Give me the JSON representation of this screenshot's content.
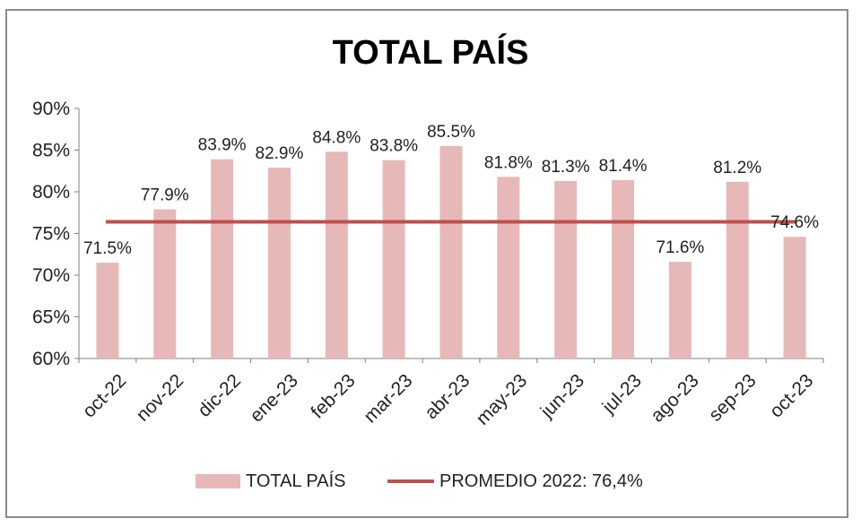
{
  "chart_data": {
    "type": "bar",
    "title": "TOTAL PAÍS",
    "categories": [
      "oct-22",
      "nov-22",
      "dic-22",
      "ene-23",
      "feb-23",
      "mar-23",
      "abr-23",
      "may-23",
      "jun-23",
      "jul-23",
      "ago-23",
      "sep-23",
      "oct-23"
    ],
    "series": [
      {
        "name": "TOTAL PAÍS",
        "values": [
          71.5,
          77.9,
          83.9,
          82.9,
          84.8,
          83.8,
          85.5,
          81.8,
          81.3,
          81.4,
          71.6,
          81.2,
          74.6
        ],
        "color": "#e6b9b8"
      }
    ],
    "value_labels": [
      "71.5%",
      "77.9%",
      "83.9%",
      "82.9%",
      "84.8%",
      "83.8%",
      "85.5%",
      "81.8%",
      "81.3%",
      "81.4%",
      "71.6%",
      "81.2%",
      "74.6%"
    ],
    "reference_line": {
      "name": "PROMEDIO 2022: 76,4%",
      "value": 76.4,
      "color": "#c0504d"
    },
    "ylim": [
      60,
      90
    ],
    "yticks": [
      60,
      65,
      70,
      75,
      80,
      85,
      90
    ],
    "ytick_labels": [
      "60%",
      "65%",
      "70%",
      "75%",
      "80%",
      "85%",
      "90%"
    ],
    "legend_position": "bottom",
    "grid": false
  }
}
